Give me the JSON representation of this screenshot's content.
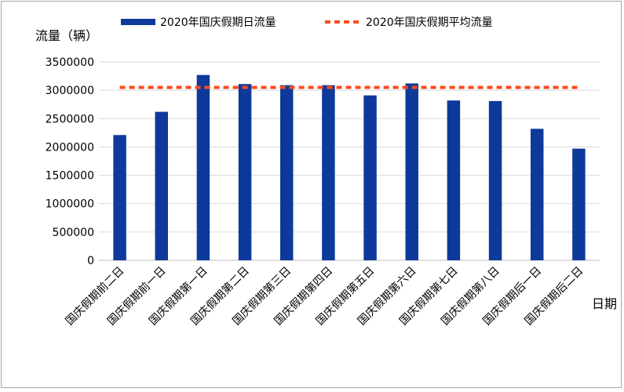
{
  "chart_data": {
    "type": "bar",
    "ylabel": "流量（辆）",
    "xlabel": "日期",
    "ylim": [
      0,
      3500000
    ],
    "yticks": [
      0,
      500000,
      1000000,
      1500000,
      2000000,
      2500000,
      3000000,
      3500000
    ],
    "ytick_labels": [
      "0",
      "500000",
      "1000000",
      "1500000",
      "2000000",
      "2500000",
      "3000000",
      "3500000"
    ],
    "grid": true,
    "legend_position": "top",
    "categories": [
      "国庆假期前二日",
      "国庆假期前一日",
      "国庆假期第一日",
      "国庆假期第二日",
      "国庆假期第三日",
      "国庆假期第四日",
      "国庆假期第五日",
      "国庆假期第六日",
      "国庆假期第七日",
      "国庆假期第八日",
      "国庆假期后一日",
      "国庆假期后二日"
    ],
    "series": [
      {
        "name": "2020年国庆假期日流量",
        "type": "bar",
        "color": "#0d3a9a",
        "values": [
          2210000,
          2620000,
          3270000,
          3110000,
          3090000,
          3090000,
          2910000,
          3120000,
          2820000,
          2810000,
          2320000,
          1970000
        ]
      },
      {
        "name": "2020年国庆假期平均流量",
        "type": "line",
        "style": "dashed",
        "color": "#ff4a1c",
        "values": [
          3050000,
          3050000,
          3050000,
          3050000,
          3050000,
          3050000,
          3050000,
          3050000,
          3050000,
          3050000,
          3050000,
          3050000
        ]
      }
    ]
  }
}
